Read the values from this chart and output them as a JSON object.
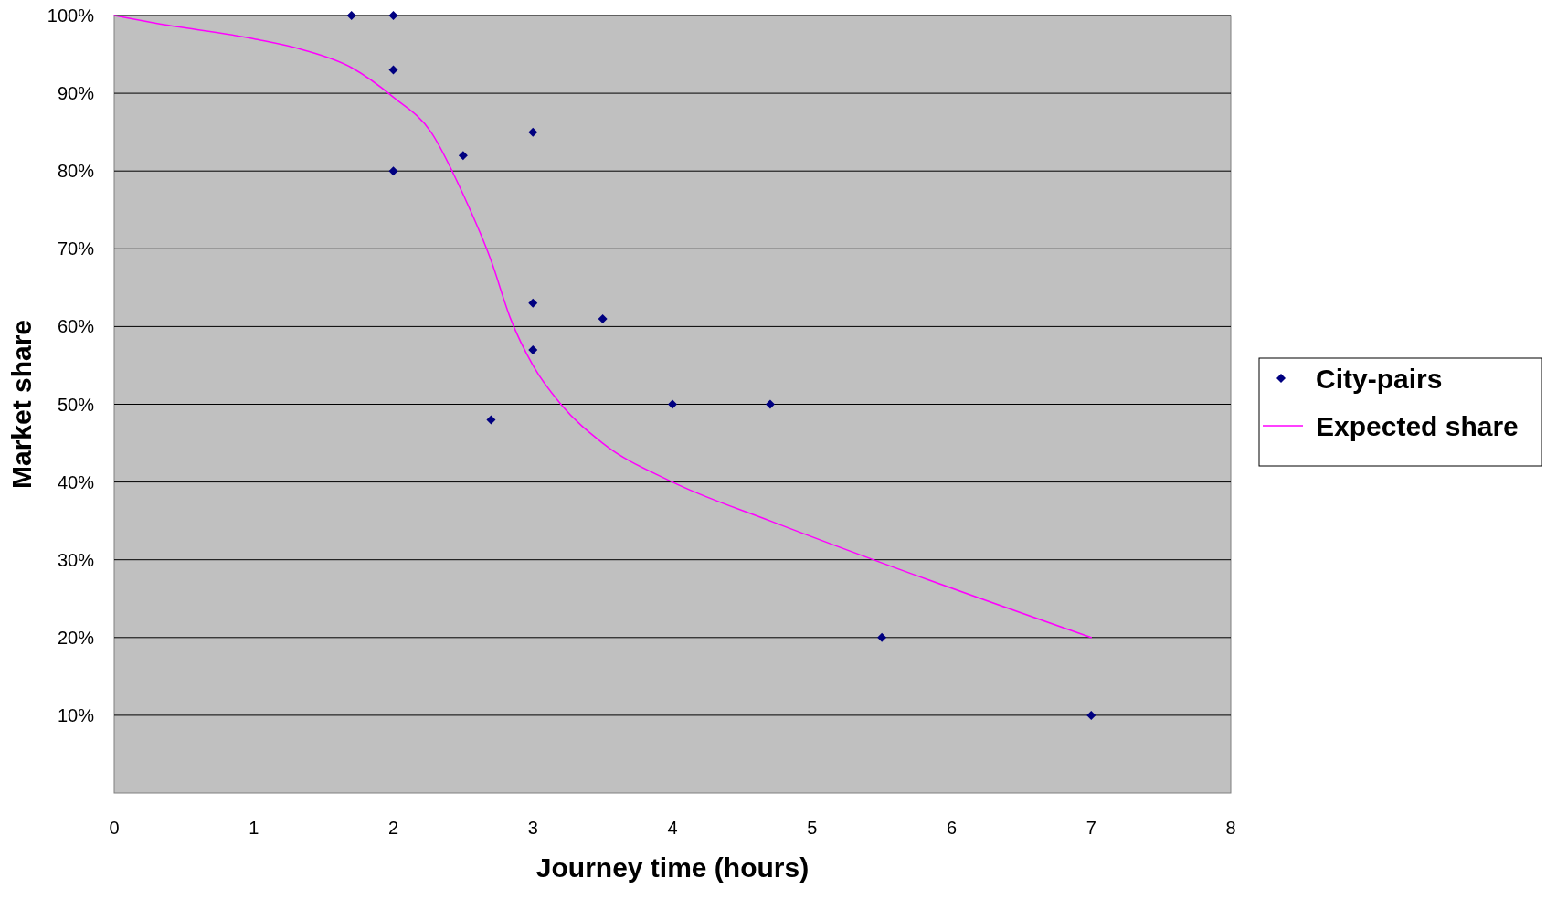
{
  "chart_data": {
    "type": "scatter",
    "xlabel": "Journey time (hours)",
    "ylabel": "Market share",
    "xlim": [
      0,
      8
    ],
    "xticks": [
      0,
      1,
      2,
      3,
      4,
      5,
      6,
      7,
      8
    ],
    "ylim": [
      0,
      100
    ],
    "yticks": [
      {
        "value": 10,
        "label": "10%"
      },
      {
        "value": 20,
        "label": "20%"
      },
      {
        "value": 30,
        "label": "30%"
      },
      {
        "value": 40,
        "label": "40%"
      },
      {
        "value": 50,
        "label": "50%"
      },
      {
        "value": 60,
        "label": "60%"
      },
      {
        "value": 70,
        "label": "70%"
      },
      {
        "value": 80,
        "label": "80%"
      },
      {
        "value": 90,
        "label": "90%"
      },
      {
        "value": 100,
        "label": "100%"
      }
    ],
    "grid": "y",
    "legend": "right",
    "series": [
      {
        "name": "City-pairs",
        "marker": "diamond",
        "color": "#000080",
        "x": [
          1.7,
          2,
          2,
          2,
          2.5,
          3,
          3,
          3,
          2.7,
          3.5,
          4,
          4.7,
          5.5,
          7
        ],
        "values": [
          100,
          100,
          93,
          80,
          82,
          85,
          63,
          57,
          48,
          61,
          50,
          50,
          20,
          10
        ]
      },
      {
        "name": "Expected share",
        "type": "line",
        "color": "#ff00ff",
        "x": [
          0,
          0.3,
          1,
          1.35,
          1.7,
          2,
          2.27,
          2.5,
          2.7,
          2.84,
          3,
          3.2,
          3.5,
          4,
          4.7,
          5.5,
          7
        ],
        "values": [
          100,
          99,
          97,
          95.6,
          93.3,
          89.5,
          85,
          77,
          68.5,
          61,
          55,
          50,
          45,
          40,
          35,
          29.6,
          20
        ]
      }
    ]
  }
}
